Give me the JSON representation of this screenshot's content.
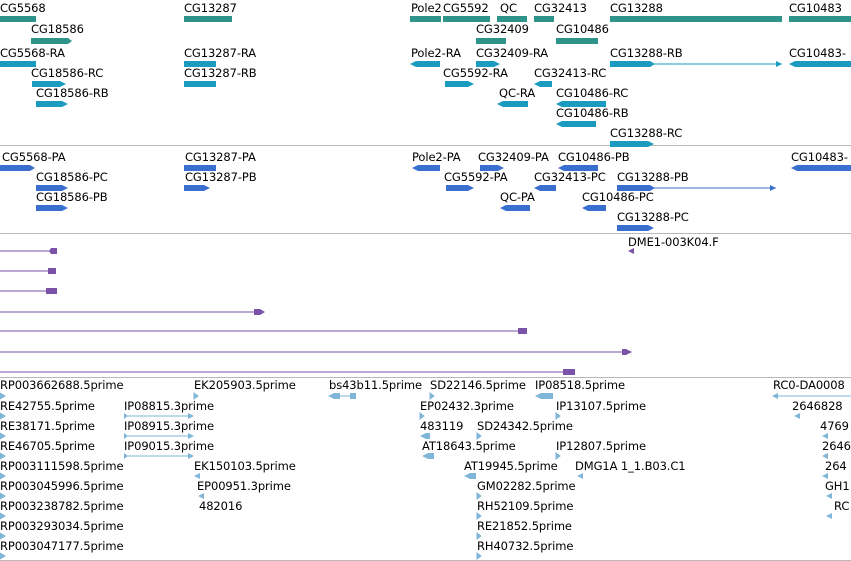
{
  "colors": {
    "gene": "#2e9389",
    "transcript_rna": "#1a9bbf",
    "transcript_protein": "#3a6fcf",
    "cdna": "#7a52a8",
    "est": "#7fb6d8",
    "separator": "#b8b8b8"
  },
  "tracks": {
    "genes": {
      "labels": [
        "CG5568",
        "CG18586",
        "CG13287",
        "Pole2",
        "CG5592",
        "QC",
        "CG32413",
        "CG32409",
        "CG13288",
        "CG10486",
        "CG10483"
      ]
    },
    "transcripts": {
      "labels": [
        "CG5568-RA",
        "CG18586-RC",
        "CG18586-RB",
        "CG13287-RA",
        "CG13287-RB",
        "Pole2-RA",
        "CG32409-RA",
        "CG5592-RA",
        "CG32413-RC",
        "QC-RA",
        "CG13288-RB",
        "CG10486-RC",
        "CG10486-RB",
        "CG13288-RC",
        "CG10483-"
      ]
    },
    "proteins": {
      "labels": [
        "CG5568-PA",
        "CG18586-PC",
        "CG18586-PB",
        "CG13287-PA",
        "CG13287-PB",
        "Pole2-PA",
        "CG32409-PA",
        "CG10486-PB",
        "CG5592-PA",
        "CG32413-PC",
        "QC-PA",
        "CG13288-PB",
        "CG10486-PC",
        "CG13288-PC",
        "CG10483-"
      ]
    },
    "cdna": {
      "labels": [
        "DME1-003K04.F"
      ]
    },
    "ests": {
      "labels": [
        "RP003662688.5prime",
        "EK205903.5prime",
        "bs43b11.5prime",
        "SD22146.5prime",
        "IP08518.5prime",
        "RC0-DA0008",
        "RE42755.5prime",
        "IP08815.3prime",
        "EP02432.3prime",
        "IP13107.5prime",
        "2646828",
        "RE38171.5prime",
        "IP08915.3prime",
        "483119",
        "SD24342.5prime",
        "4769",
        "RE46705.5prime",
        "IP09015.3prime",
        "AT18643.5prime",
        "IP12807.5prime",
        "2646",
        "RP003111598.5prime",
        "EK150103.5prime",
        "AT19945.5prime",
        "DMG1A 1_1.B03.C1",
        "264",
        "RP003045996.5prime",
        "EP00951.3prime",
        "GM02282.5prime",
        "GH1",
        "RP003238782.5prime",
        "482016",
        "RH52109.5prime",
        "RC",
        "RP003293034.5prime",
        "RE21852.5prime",
        "RP003047177.5prime",
        "RH40732.5prime"
      ]
    }
  }
}
